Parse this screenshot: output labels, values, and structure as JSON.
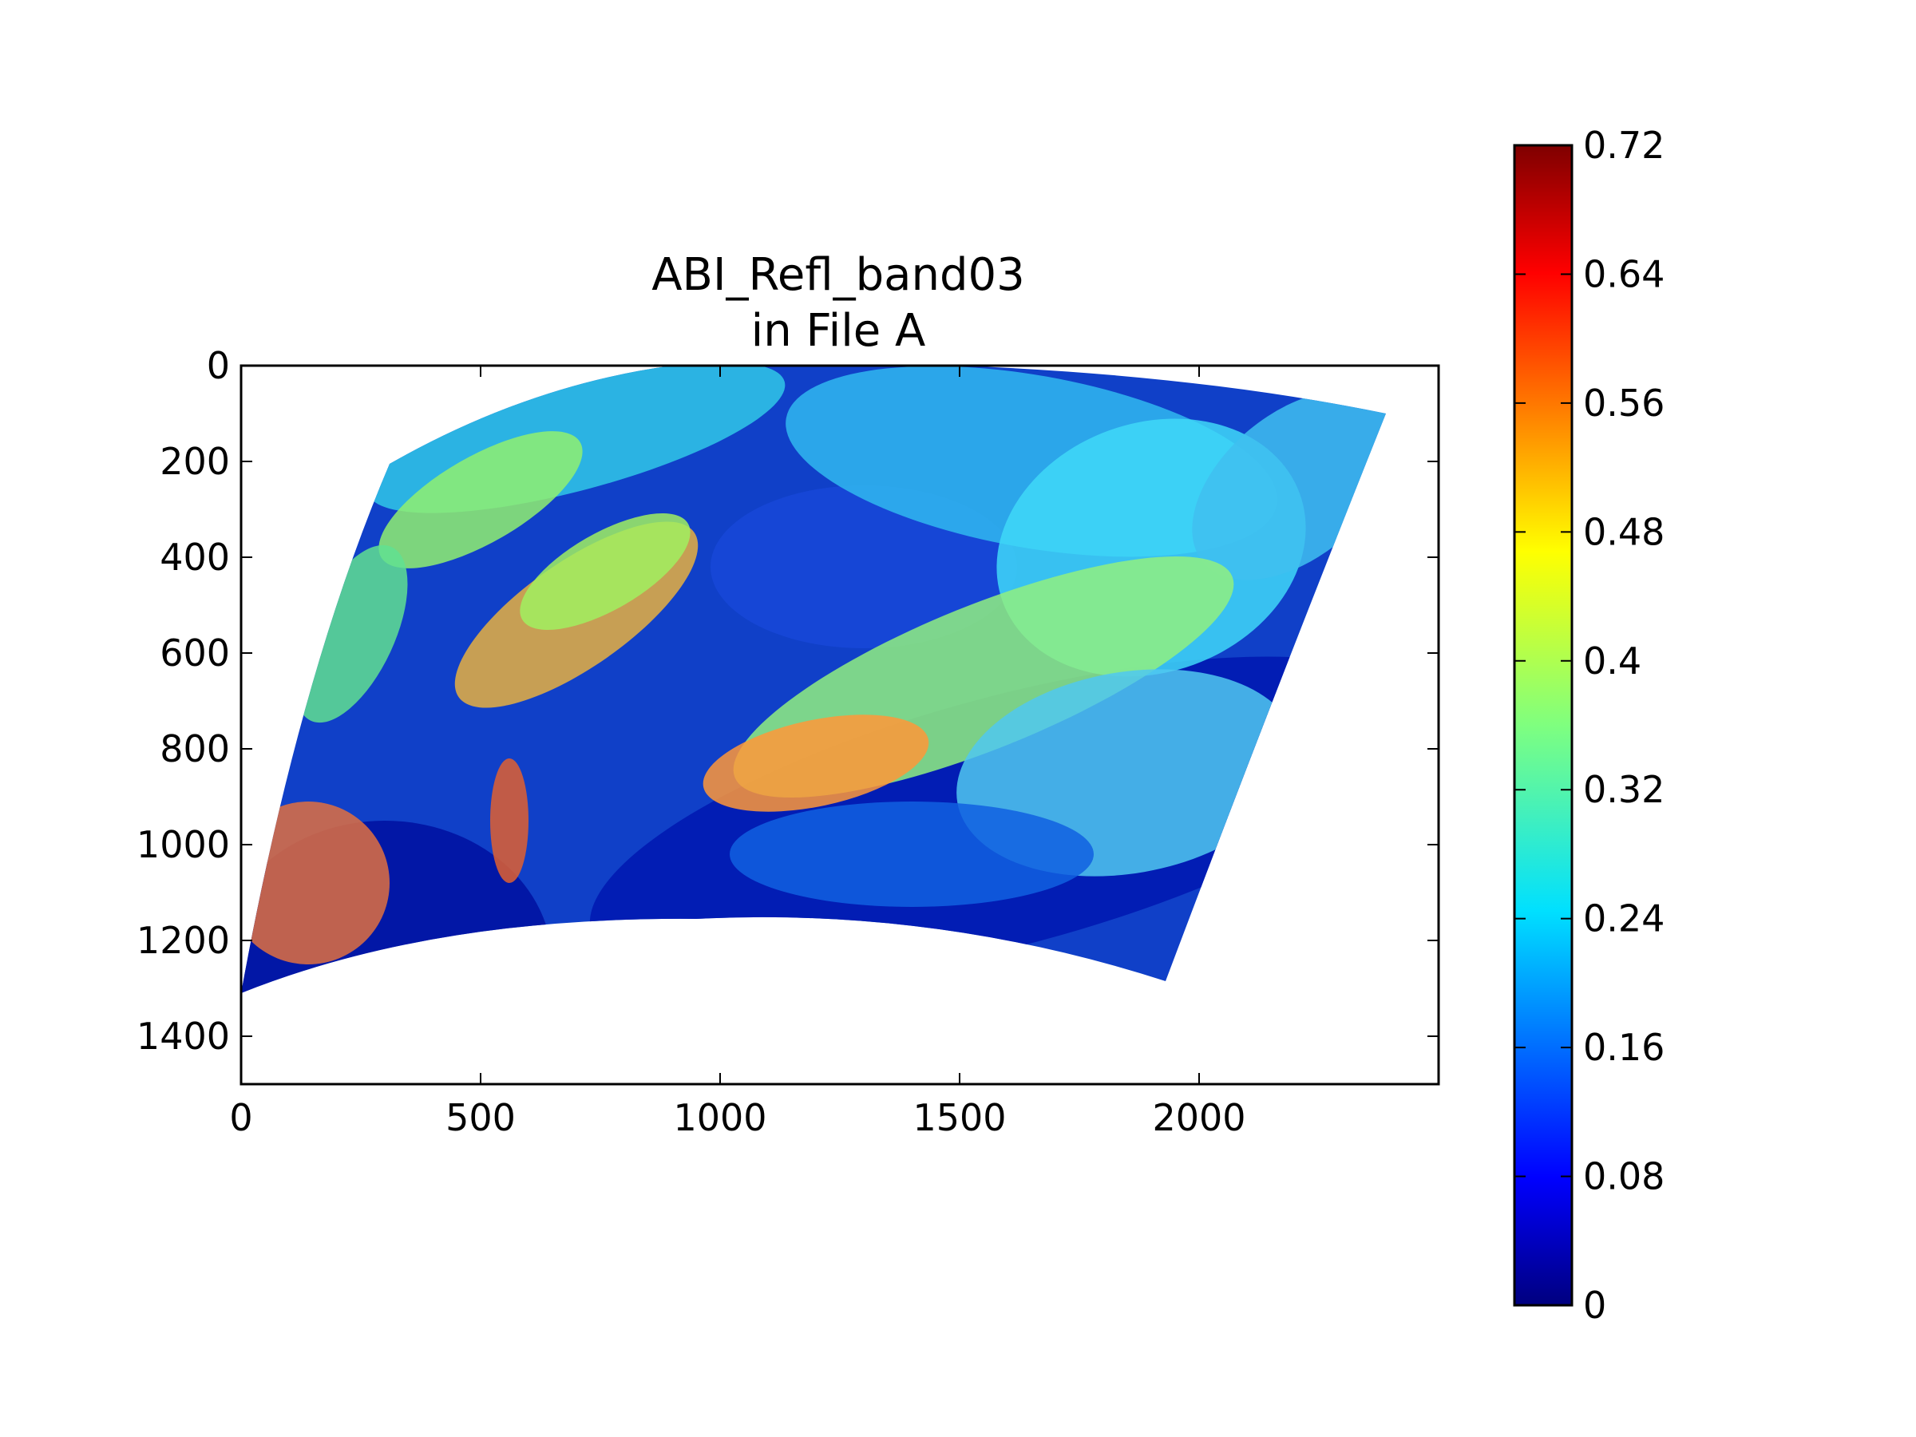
{
  "chart_data": {
    "type": "heatmap",
    "title": "ABI_Refl_band03",
    "subtitle": "in File A",
    "xlabel": "",
    "ylabel": "",
    "xlim": [
      0,
      2500
    ],
    "ylim": [
      1500,
      0
    ],
    "y_inverted": true,
    "x_ticks": [
      0,
      500,
      1000,
      1500,
      2000
    ],
    "y_ticks": [
      0,
      200,
      400,
      600,
      800,
      1000,
      1200,
      1400
    ],
    "colormap": "jet",
    "colorbar": {
      "min": 0,
      "max": 0.72,
      "ticks": [
        "0",
        "0.08",
        "0.16",
        "0.24",
        "0.32",
        "0.4",
        "0.48",
        "0.56",
        "0.64",
        "0.72"
      ],
      "placement": "right"
    },
    "data_footprint": {
      "description_note": "",
      "outline": [
        [
          0,
          1310
        ],
        [
          310,
          205
        ],
        [
          900,
          0
        ],
        [
          1500,
          0
        ],
        [
          2390,
          100
        ],
        [
          1930,
          1285
        ],
        [
          950,
          1155
        ]
      ]
    },
    "grid": false,
    "legend": "none"
  },
  "colors": {
    "background": "#ffffff",
    "axes": "#000000",
    "jet_stops": [
      "#00007f",
      "#0000ff",
      "#007fff",
      "#00ffff",
      "#7fff7f",
      "#ffff00",
      "#ff7f00",
      "#ff0000",
      "#7f0000"
    ]
  }
}
